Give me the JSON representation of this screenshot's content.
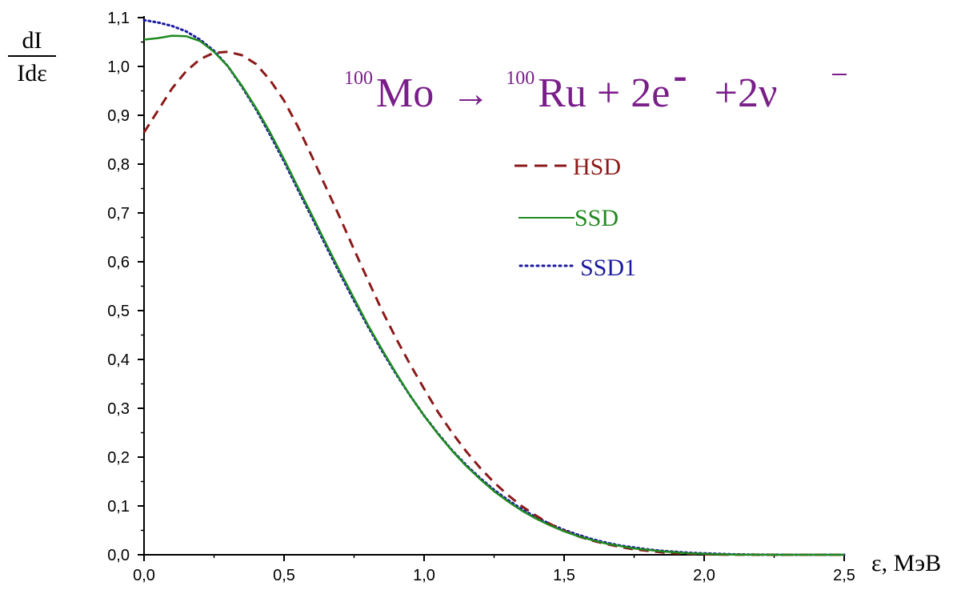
{
  "chart_data": {
    "type": "line",
    "ylabel_num": "dI",
    "ylabel_den": "Idε",
    "xlabel": "ε, МэВ",
    "formula": {
      "parent_mass": "100",
      "parent": "Mo",
      "arrow": "→",
      "daughter_mass": "100",
      "daughter": "Ru + 2e",
      "electron_sign": "-",
      "neutrinos": "+2ν"
    },
    "xlim": [
      0,
      2.5
    ],
    "ylim": [
      0,
      1.1
    ],
    "x_ticks": [
      "0,0",
      "0,5",
      "1,0",
      "1,5",
      "2,0",
      "2,5"
    ],
    "y_ticks": [
      "0,0",
      "0,1",
      "0,2",
      "0,3",
      "0,4",
      "0,5",
      "0,6",
      "0,7",
      "0,8",
      "0,9",
      "1,0",
      "1,1"
    ],
    "grid": false,
    "legend_position": "upper-right",
    "series": [
      {
        "name": "HSD",
        "style": "dashed",
        "color": "#8b1a1a",
        "x": [
          0.0,
          0.05,
          0.1,
          0.15,
          0.2,
          0.25,
          0.3,
          0.35,
          0.4,
          0.45,
          0.5,
          0.55,
          0.6,
          0.65,
          0.7,
          0.75,
          0.8,
          0.85,
          0.9,
          0.95,
          1.0,
          1.05,
          1.1,
          1.15,
          1.2,
          1.25,
          1.3,
          1.35,
          1.4,
          1.45,
          1.5,
          1.55,
          1.6,
          1.65,
          1.7,
          1.75,
          1.8,
          1.85,
          1.9,
          1.95,
          2.0,
          2.05,
          2.1,
          2.15,
          2.2,
          2.25,
          2.3,
          2.35,
          2.4,
          2.45,
          2.5
        ],
        "y": [
          0.865,
          0.91,
          0.955,
          0.99,
          1.015,
          1.028,
          1.03,
          1.023,
          1.005,
          0.972,
          0.93,
          0.876,
          0.815,
          0.752,
          0.69,
          0.625,
          0.562,
          0.5,
          0.443,
          0.39,
          0.34,
          0.292,
          0.25,
          0.212,
          0.178,
          0.148,
          0.122,
          0.099,
          0.08,
          0.063,
          0.049,
          0.038,
          0.029,
          0.022,
          0.016,
          0.011,
          0.008,
          0.005,
          0.003,
          0.002,
          0.001,
          0.0005,
          0.0002,
          0.0001,
          0.0,
          0.0,
          0.0,
          0.0,
          0.0,
          0.0,
          0.0
        ]
      },
      {
        "name": "SSD",
        "style": "solid",
        "color": "#1f8a1f",
        "x": [
          0.0,
          0.05,
          0.1,
          0.15,
          0.2,
          0.25,
          0.3,
          0.35,
          0.4,
          0.45,
          0.5,
          0.55,
          0.6,
          0.65,
          0.7,
          0.75,
          0.8,
          0.85,
          0.9,
          0.95,
          1.0,
          1.05,
          1.1,
          1.15,
          1.2,
          1.25,
          1.3,
          1.35,
          1.4,
          1.45,
          1.5,
          1.55,
          1.6,
          1.65,
          1.7,
          1.75,
          1.8,
          1.85,
          1.9,
          1.95,
          2.0,
          2.05,
          2.1,
          2.15,
          2.2,
          2.25,
          2.3,
          2.35,
          2.4,
          2.45,
          2.5
        ],
        "y": [
          1.055,
          1.058,
          1.063,
          1.062,
          1.052,
          1.03,
          1.0,
          0.96,
          0.915,
          0.865,
          0.81,
          0.752,
          0.695,
          0.637,
          0.58,
          0.525,
          0.47,
          0.42,
          0.372,
          0.326,
          0.285,
          0.247,
          0.213,
          0.182,
          0.155,
          0.13,
          0.109,
          0.09,
          0.074,
          0.06,
          0.048,
          0.038,
          0.03,
          0.023,
          0.018,
          0.013,
          0.01,
          0.007,
          0.005,
          0.003,
          0.002,
          0.001,
          0.0005,
          0.0002,
          0.0001,
          0.0,
          0.0,
          0.0,
          0.0,
          0.0,
          0.0
        ]
      },
      {
        "name": "SSD1",
        "style": "dotted",
        "color": "#1a1aa0",
        "x": [
          0.0,
          0.05,
          0.1,
          0.15,
          0.2,
          0.25,
          0.3,
          0.35,
          0.4,
          0.45,
          0.5,
          0.55,
          0.6,
          0.65,
          0.7,
          0.75,
          0.8,
          0.85,
          0.9,
          0.95,
          1.0,
          1.05,
          1.1,
          1.15,
          1.2,
          1.25,
          1.3,
          1.35,
          1.4,
          1.45,
          1.5,
          1.55,
          1.6,
          1.65,
          1.7,
          1.75,
          1.8,
          1.85,
          1.9,
          1.95,
          2.0,
          2.05,
          2.1,
          2.15,
          2.2,
          2.25,
          2.3,
          2.35,
          2.4,
          2.45,
          2.5
        ],
        "y": [
          1.095,
          1.09,
          1.083,
          1.072,
          1.055,
          1.032,
          1.0,
          0.958,
          0.912,
          0.86,
          0.805,
          0.747,
          0.69,
          0.632,
          0.575,
          0.52,
          0.467,
          0.417,
          0.37,
          0.326,
          0.285,
          0.248,
          0.214,
          0.184,
          0.157,
          0.133,
          0.112,
          0.093,
          0.077,
          0.063,
          0.051,
          0.041,
          0.032,
          0.025,
          0.019,
          0.015,
          0.011,
          0.008,
          0.006,
          0.004,
          0.003,
          0.002,
          0.001,
          0.0005,
          0.0002,
          0.0001,
          0.0,
          0.0,
          0.0,
          0.0,
          0.0
        ]
      }
    ]
  }
}
